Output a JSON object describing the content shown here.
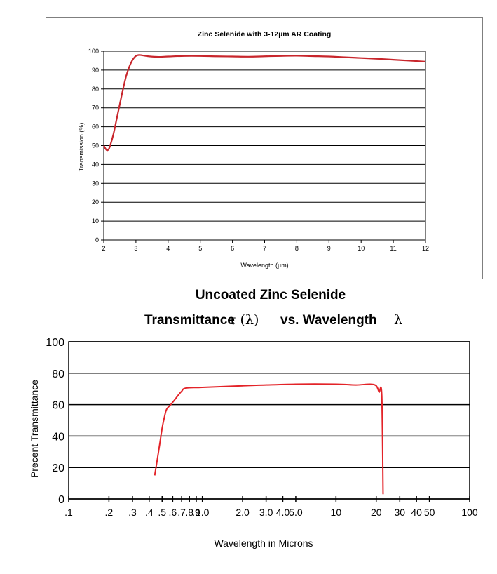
{
  "chart_data": [
    {
      "type": "line",
      "title": "Zinc Selenide with 3-12µm AR Coating",
      "xlabel": "Wavelength (µm)",
      "ylabel": "Transmission (%)",
      "xlim": [
        2,
        12
      ],
      "ylim": [
        0,
        100
      ],
      "x_ticks": [
        "2",
        "3",
        "4",
        "5",
        "6",
        "7",
        "8",
        "9",
        "10",
        "11",
        "12"
      ],
      "y_ticks": [
        "0",
        "10",
        "20",
        "30",
        "40",
        "50",
        "60",
        "70",
        "80",
        "90",
        "100"
      ],
      "grid": true,
      "series": [
        {
          "name": "Transmission",
          "color": "#c8262c",
          "x": [
            2.0,
            2.05,
            2.1,
            2.15,
            2.2,
            2.3,
            2.4,
            2.5,
            2.6,
            2.7,
            2.8,
            2.9,
            3.0,
            3.1,
            3.2,
            3.4,
            3.7,
            4.0,
            4.5,
            5.0,
            5.5,
            6.0,
            6.5,
            7.0,
            7.5,
            8.0,
            8.5,
            9.0,
            9.5,
            10.0,
            10.5,
            11.0,
            11.5,
            12.0
          ],
          "y": [
            50,
            48.5,
            47.5,
            48,
            50,
            56,
            64,
            72,
            80,
            87,
            92,
            95.5,
            97.5,
            98,
            97.8,
            97.3,
            97,
            97.2,
            97.5,
            97.5,
            97.3,
            97.2,
            97.1,
            97.3,
            97.5,
            97.6,
            97.4,
            97.2,
            96.8,
            96.4,
            96,
            95.5,
            95,
            94.5
          ]
        }
      ]
    },
    {
      "type": "line",
      "title": "Uncoated Zinc Selenide",
      "subtitle_parts": [
        "Transmittance",
        "τ (λ)",
        "vs. Wavelength",
        "λ"
      ],
      "xlabel": "Wavelength in Microns",
      "ylabel": "Precent Transmittance",
      "x_scale": "log",
      "xlim": [
        0.1,
        100
      ],
      "ylim": [
        0,
        100
      ],
      "x_ticks": [
        {
          "value": 0.1,
          "label": ".1"
        },
        {
          "value": 0.2,
          "label": ".2"
        },
        {
          "value": 0.3,
          "label": ".3"
        },
        {
          "value": 0.4,
          "label": ".4"
        },
        {
          "value": 0.5,
          "label": ".5"
        },
        {
          "value": 0.6,
          "label": ".6"
        },
        {
          "value": 0.7,
          "label": ".7"
        },
        {
          "value": 0.8,
          "label": ".8"
        },
        {
          "value": 0.9,
          "label": ".9"
        },
        {
          "value": 1.0,
          "label": "1.0"
        },
        {
          "value": 2.0,
          "label": "2.0"
        },
        {
          "value": 3.0,
          "label": "3.0"
        },
        {
          "value": 4.0,
          "label": "4.0"
        },
        {
          "value": 5.0,
          "label": "5.0"
        },
        {
          "value": 10,
          "label": "10"
        },
        {
          "value": 20,
          "label": "20"
        },
        {
          "value": 30,
          "label": "30"
        },
        {
          "value": 40,
          "label": "40"
        },
        {
          "value": 50,
          "label": "50"
        },
        {
          "value": 100,
          "label": "100"
        }
      ],
      "y_ticks": [
        "0",
        "20",
        "40",
        "60",
        "80",
        "100"
      ],
      "grid": true,
      "series": [
        {
          "name": "Transmittance",
          "color": "#e32328",
          "x": [
            0.44,
            0.46,
            0.48,
            0.5,
            0.52,
            0.54,
            0.58,
            0.62,
            0.66,
            0.7,
            0.75,
            1.0,
            2.0,
            5.0,
            10,
            14,
            18,
            20,
            21,
            22,
            22.5
          ],
          "y": [
            15,
            25,
            35,
            45,
            52,
            57,
            60,
            63,
            66,
            68.5,
            70.5,
            71,
            72,
            73,
            73,
            72.5,
            73,
            72,
            68,
            66,
            3
          ]
        }
      ]
    }
  ]
}
